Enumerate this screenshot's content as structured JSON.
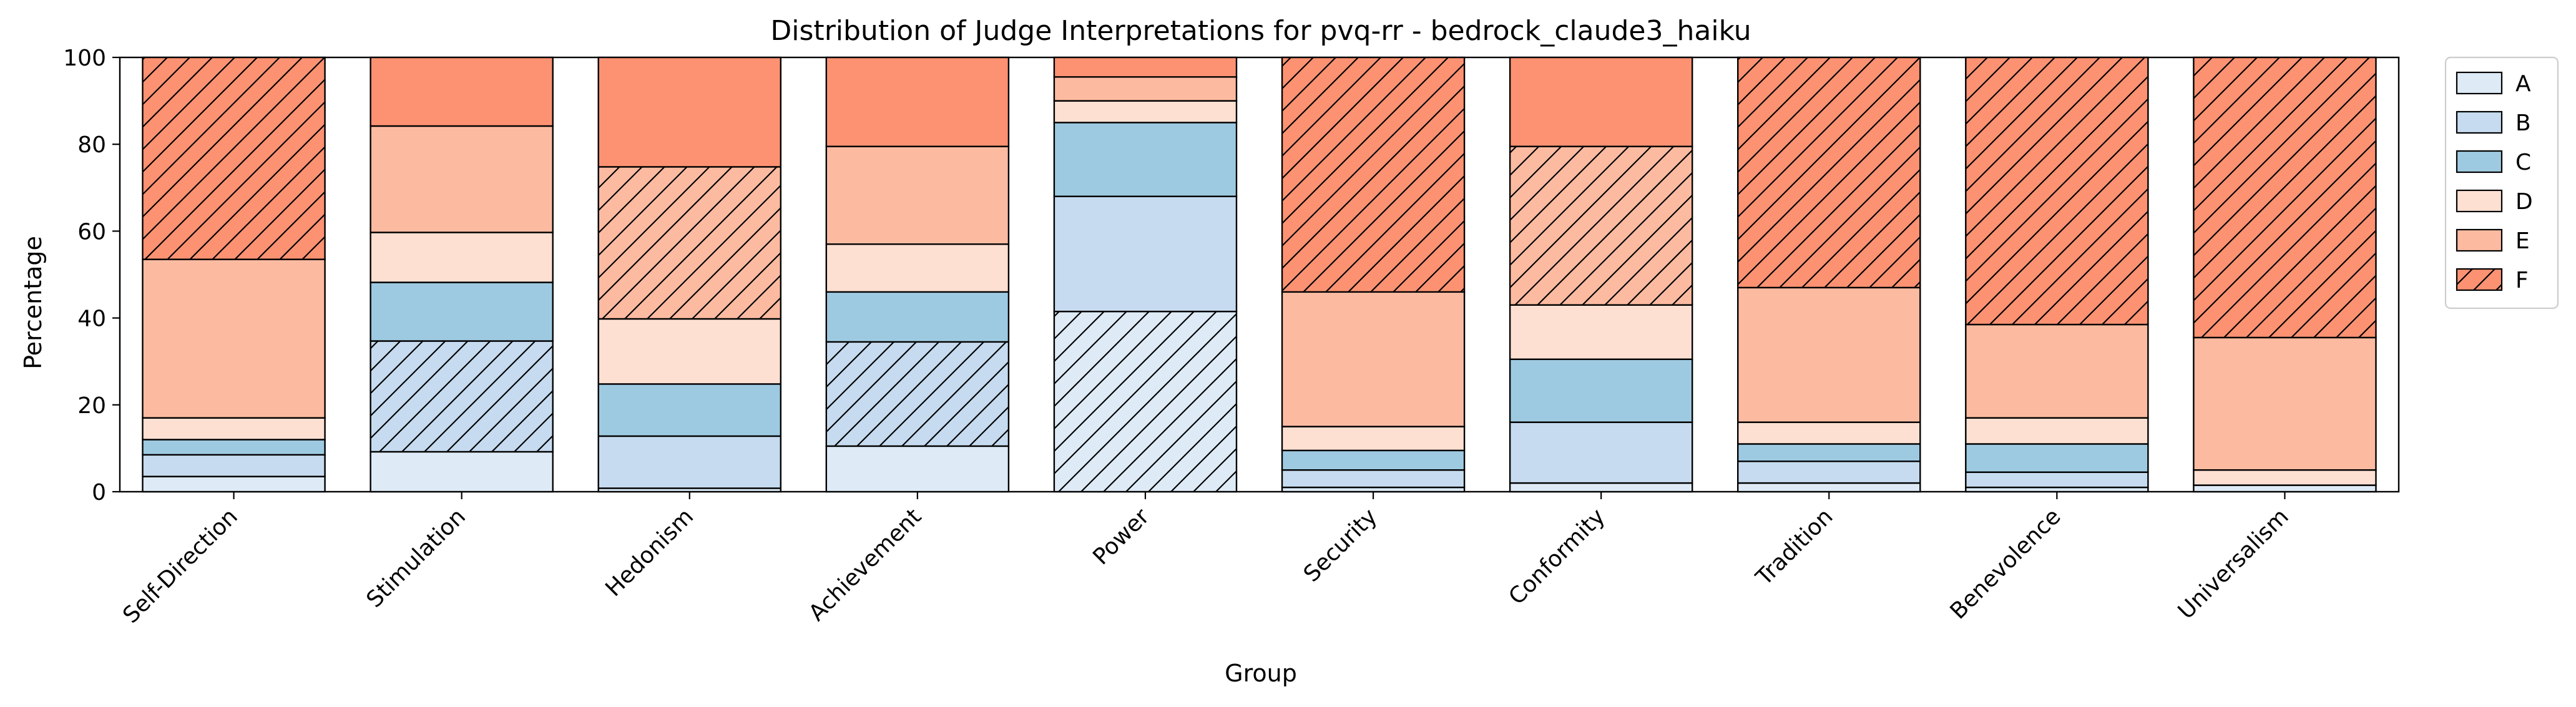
{
  "chart_data": {
    "type": "bar",
    "stacked": true,
    "title": "Distribution of Judge Interpretations for pvq-rr - bedrock_claude3_haiku",
    "xlabel": "Group",
    "ylabel": "Percentage",
    "ylim": [
      0,
      100
    ],
    "yticks": [
      0,
      20,
      40,
      60,
      80,
      100
    ],
    "grid": false,
    "legend_position": "outside-right-top",
    "categories": [
      "Self-Direction",
      "Stimulation",
      "Hedonism",
      "Achievement",
      "Power",
      "Security",
      "Conformity",
      "Tradition",
      "Benevolence",
      "Universalism"
    ],
    "series": [
      {
        "name": "A",
        "color": "#deebf7",
        "values": [
          3.5,
          9.2,
          0.8,
          10.5,
          41.5,
          1.0,
          2.0,
          2.0,
          1.0,
          1.5
        ]
      },
      {
        "name": "B",
        "color": "#c6dbef",
        "values": [
          5.0,
          25.5,
          12.0,
          24.0,
          26.5,
          4.0,
          14.0,
          5.0,
          3.5,
          0.0
        ]
      },
      {
        "name": "C",
        "color": "#9ecae1",
        "values": [
          3.5,
          13.5,
          12.0,
          11.5,
          17.0,
          4.5,
          14.5,
          4.0,
          6.5,
          0.0
        ]
      },
      {
        "name": "D",
        "color": "#fee0d2",
        "values": [
          5.0,
          11.5,
          15.0,
          11.0,
          5.0,
          5.5,
          12.5,
          5.0,
          6.0,
          3.5
        ]
      },
      {
        "name": "E",
        "color": "#fcbba1",
        "values": [
          36.5,
          24.5,
          35.0,
          22.5,
          5.5,
          31.0,
          36.5,
          31.0,
          21.5,
          30.5
        ]
      },
      {
        "name": "F",
        "color": "#fc9272",
        "values": [
          46.5,
          15.8,
          25.2,
          20.5,
          4.5,
          54.0,
          20.5,
          53.0,
          61.5,
          64.5
        ]
      }
    ],
    "hatched_segment_per_category": [
      "F",
      "B",
      "E",
      "B",
      "A",
      "F",
      "E",
      "F",
      "F",
      "F"
    ]
  }
}
